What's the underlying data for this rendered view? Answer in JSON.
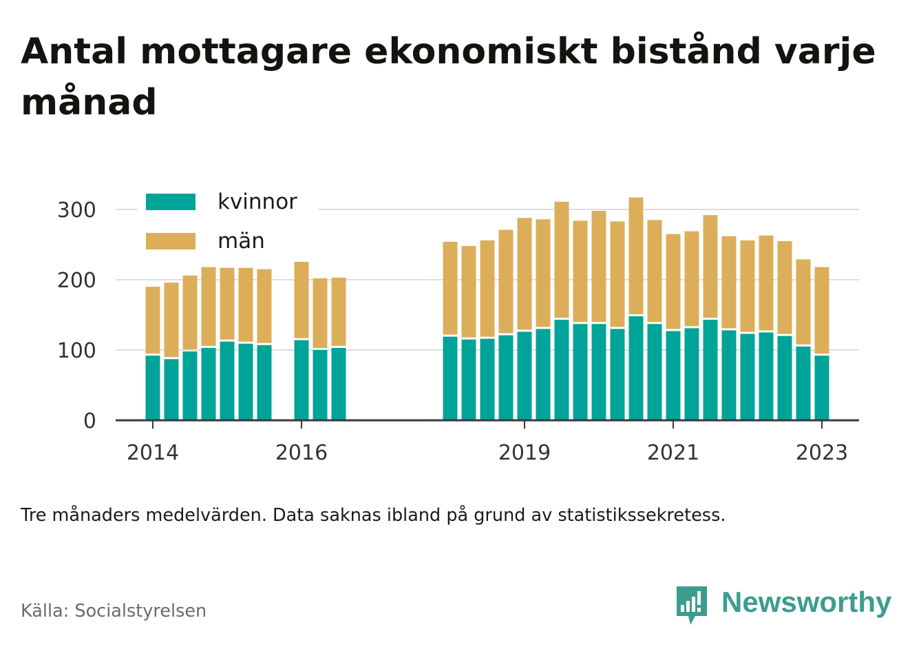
{
  "title": "Antal mottagare ekonomiskt bistånd varje månad",
  "note": "Tre månaders medelvärden. Data saknas ibland på grund av statistikssekretess.",
  "source": "Källa: Socialstyrelsen",
  "brand": "Newsworthy",
  "colors": {
    "kvinnor": "#00a398",
    "man": "#dcae5a",
    "axis": "#3a3a3a",
    "grid": "#dddddd",
    "brand": "#3d9c90"
  },
  "chart_data": {
    "type": "bar",
    "stacked": true,
    "x_unit": "quarter",
    "xlim": [
      "2013-07",
      "2023-07"
    ],
    "ylim": [
      0,
      330
    ],
    "yticks": [
      0,
      100,
      200,
      300
    ],
    "xticks": [
      {
        "label": "2014",
        "date": "2014-01"
      },
      {
        "label": "2016",
        "date": "2016-01"
      },
      {
        "label": "2019",
        "date": "2019-01"
      },
      {
        "label": "2021",
        "date": "2021-01"
      },
      {
        "label": "2023",
        "date": "2023-01"
      }
    ],
    "grid": true,
    "legend_position": "top-left",
    "series": [
      {
        "name": "kvinnor",
        "color": "#00a398"
      },
      {
        "name": "män",
        "color": "#dcae5a"
      }
    ],
    "x": [
      "2014-01",
      "2014-04",
      "2014-07",
      "2014-10",
      "2015-01",
      "2015-04",
      "2015-07",
      "2015-10",
      "2016-01",
      "2016-04",
      "2016-07",
      "2016-10",
      "2017-01",
      "2017-04",
      "2017-07",
      "2017-10",
      "2018-01",
      "2018-04",
      "2018-07",
      "2018-10",
      "2019-01",
      "2019-04",
      "2019-07",
      "2019-10",
      "2020-01",
      "2020-04",
      "2020-07",
      "2020-10",
      "2021-01",
      "2021-04",
      "2021-07",
      "2021-10",
      "2022-01",
      "2022-04",
      "2022-07",
      "2022-10",
      "2023-01"
    ],
    "kvinnor": [
      92,
      87,
      98,
      103,
      112,
      109,
      107,
      null,
      114,
      100,
      103,
      null,
      null,
      null,
      null,
      null,
      119,
      115,
      116,
      121,
      126,
      130,
      143,
      137,
      137,
      130,
      148,
      137,
      127,
      131,
      143,
      128,
      123,
      125,
      120,
      105,
      92
    ],
    "man": [
      98,
      109,
      108,
      115,
      105,
      108,
      108,
      null,
      112,
      102,
      100,
      null,
      null,
      null,
      null,
      null,
      135,
      133,
      140,
      150,
      162,
      156,
      168,
      147,
      161,
      153,
      169,
      148,
      138,
      138,
      149,
      134,
      133,
      138,
      135,
      124,
      126
    ]
  }
}
